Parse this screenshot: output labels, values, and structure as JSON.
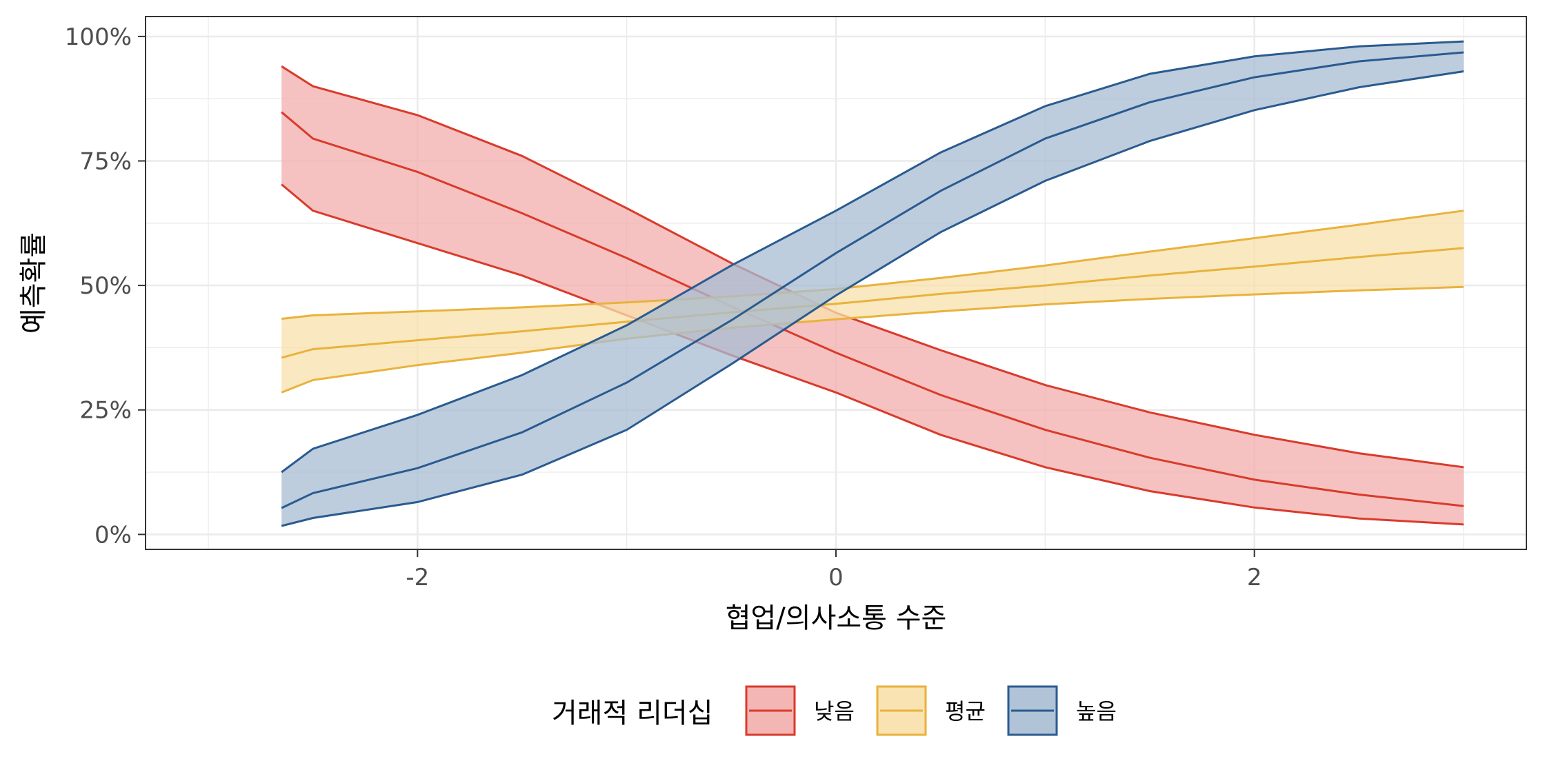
{
  "chart_data": {
    "type": "line",
    "xlabel": "협업/의사소통 수준",
    "ylabel": "예측확률",
    "xlim": [
      -3.3,
      3.3
    ],
    "ylim": [
      -0.03,
      1.04
    ],
    "x_ticks": [
      -2,
      0,
      2
    ],
    "x_tick_labels": [
      "-2",
      "0",
      "2"
    ],
    "y_ticks": [
      0,
      0.25,
      0.5,
      0.75,
      1.0
    ],
    "y_tick_labels": [
      "0%",
      "25%",
      "50%",
      "75%",
      "100%"
    ],
    "grid": true,
    "legend": {
      "title": "거래적 리더십",
      "position": "bottom"
    },
    "x": [
      -2.65,
      -2.5,
      -2.0,
      -1.5,
      -1.0,
      -0.5,
      0.0,
      0.5,
      1.0,
      1.5,
      2.0,
      2.5,
      3.0
    ],
    "series": [
      {
        "name": "낮음",
        "color": "#d93b2b",
        "fill": "#f2aeac",
        "values": [
          0.848,
          0.795,
          0.728,
          0.645,
          0.555,
          0.458,
          0.365,
          0.28,
          0.21,
          0.154,
          0.11,
          0.08,
          0.057
        ],
        "lower": [
          0.703,
          0.65,
          0.585,
          0.52,
          0.44,
          0.36,
          0.285,
          0.2,
          0.135,
          0.087,
          0.054,
          0.032,
          0.02
        ],
        "upper": [
          0.94,
          0.9,
          0.842,
          0.76,
          0.655,
          0.545,
          0.445,
          0.37,
          0.3,
          0.245,
          0.2,
          0.163,
          0.135
        ]
      },
      {
        "name": "평균",
        "color": "#e9b23c",
        "fill": "#f8e0ab",
        "values": [
          0.355,
          0.372,
          0.39,
          0.408,
          0.427,
          0.446,
          0.463,
          0.483,
          0.5,
          0.52,
          0.538,
          0.557,
          0.575
        ],
        "lower": [
          0.285,
          0.31,
          0.34,
          0.365,
          0.393,
          0.415,
          0.432,
          0.448,
          0.462,
          0.473,
          0.482,
          0.49,
          0.497
        ],
        "upper": [
          0.433,
          0.44,
          0.448,
          0.456,
          0.466,
          0.478,
          0.493,
          0.515,
          0.54,
          0.568,
          0.595,
          0.622,
          0.65
        ]
      },
      {
        "name": "높음",
        "color": "#2a5b8f",
        "fill": "#a7bcd3",
        "values": [
          0.053,
          0.083,
          0.133,
          0.205,
          0.305,
          0.43,
          0.565,
          0.69,
          0.795,
          0.868,
          0.918,
          0.95,
          0.968
        ],
        "lower": [
          0.017,
          0.033,
          0.065,
          0.12,
          0.21,
          0.342,
          0.48,
          0.607,
          0.71,
          0.79,
          0.852,
          0.898,
          0.93
        ],
        "upper": [
          0.125,
          0.172,
          0.24,
          0.32,
          0.42,
          0.54,
          0.65,
          0.767,
          0.86,
          0.925,
          0.96,
          0.98,
          0.99
        ]
      }
    ]
  }
}
